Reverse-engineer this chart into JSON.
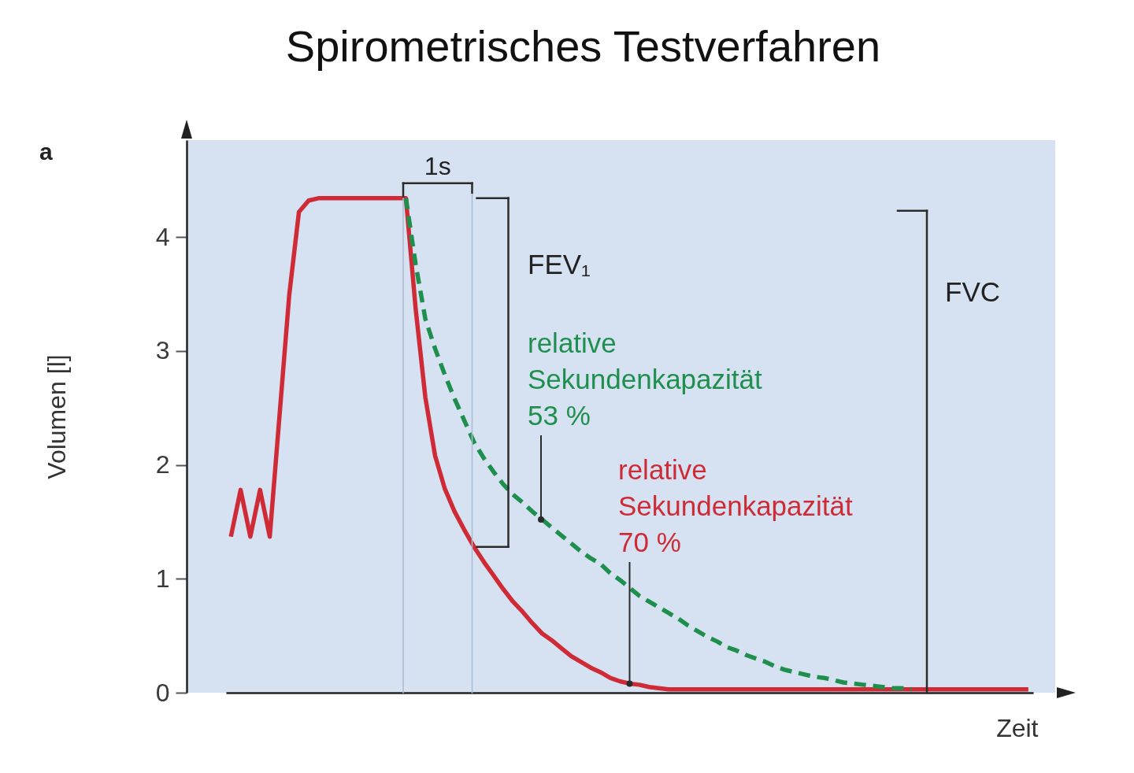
{
  "chart_data": {
    "type": "line",
    "title": "Spirometrisches Testverfahren",
    "xlabel": "Zeit",
    "ylabel": "Volumen [l]",
    "categories": [
      null,
      null,
      null,
      null,
      null,
      null,
      null,
      null,
      null,
      null,
      null,
      null,
      null,
      null,
      null,
      null,
      null,
      null,
      null,
      null,
      null,
      null,
      null,
      null,
      null,
      null,
      null,
      null,
      null,
      null,
      null,
      null,
      null,
      null,
      null,
      null,
      null,
      null,
      null,
      null,
      null,
      null,
      null,
      null,
      null,
      null,
      null,
      null,
      null,
      null,
      null,
      null,
      null,
      null,
      null,
      null,
      null,
      null,
      null,
      null,
      null,
      null,
      null,
      null,
      null,
      null,
      null,
      null,
      null,
      null,
      null,
      null,
      null,
      null,
      null,
      null,
      null,
      null,
      null,
      null,
      null,
      null,
      null
    ],
    "series": [
      {
        "color": "#cf2b36",
        "line_style": "solid",
        "values": [
          1.37,
          1.78,
          1.37,
          1.78,
          1.37,
          2.43,
          3.49,
          4.22,
          4.32,
          4.34,
          4.34,
          4.34,
          4.34,
          4.34,
          4.34,
          4.34,
          4.34,
          4.34,
          4.34,
          3.37,
          2.59,
          2.08,
          1.79,
          1.59,
          1.43,
          1.28,
          1.15,
          1.03,
          0.91,
          0.8,
          0.71,
          0.61,
          0.52,
          0.46,
          0.39,
          0.32,
          0.27,
          0.22,
          0.18,
          0.13,
          0.1,
          0.08,
          0.07,
          0.05,
          0.04,
          0.03,
          0.03,
          0.03,
          0.03,
          0.03,
          0.03,
          0.03,
          0.03,
          0.03,
          0.03,
          0.03,
          0.03,
          0.03,
          0.03,
          0.03,
          0.03,
          0.03,
          0.03,
          0.03,
          0.03,
          0.03,
          0.03,
          0.03,
          0.03,
          0.03,
          0.03,
          0.03,
          0.03,
          0.03,
          0.03,
          0.03,
          0.03,
          0.03,
          0.03,
          0.03,
          0.03,
          0.03,
          0.03
        ]
      },
      {
        "color": "#1f8f4e",
        "line_style": "dashed",
        "values": [
          null,
          null,
          null,
          null,
          null,
          null,
          null,
          null,
          null,
          null,
          null,
          null,
          null,
          null,
          null,
          null,
          null,
          null,
          4.34,
          3.76,
          3.28,
          3.02,
          2.79,
          2.58,
          2.39,
          2.2,
          2.06,
          1.94,
          1.83,
          1.74,
          1.67,
          1.59,
          1.52,
          1.45,
          1.38,
          1.31,
          1.24,
          1.18,
          1.13,
          1.05,
          0.99,
          0.92,
          0.85,
          0.8,
          0.75,
          0.7,
          0.65,
          0.59,
          0.54,
          0.49,
          0.45,
          0.4,
          0.37,
          0.33,
          0.3,
          0.27,
          0.23,
          0.2,
          0.18,
          0.16,
          0.14,
          0.13,
          0.11,
          0.09,
          0.08,
          0.07,
          0.06,
          0.05,
          0.04,
          0.04,
          0.03,
          null,
          null,
          null,
          null,
          null,
          null,
          null,
          null,
          null,
          null,
          null,
          null
        ]
      }
    ],
    "ylim": [
      0,
      4.85
    ],
    "yticks": [
      0,
      1,
      2,
      3,
      4
    ],
    "tick_labels": "y",
    "grid": false,
    "annotations": [
      "a",
      "1s",
      "FEV₁",
      "FVC",
      "relative Sekundenkapazität 53 %",
      "relative Sekundenkapazität 70 %"
    ]
  }
}
